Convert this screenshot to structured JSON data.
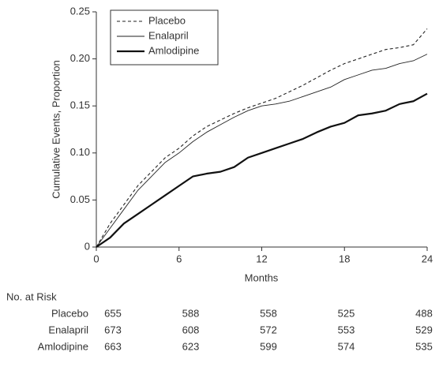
{
  "chart_data": {
    "type": "line",
    "x_label": "Months",
    "y_label": "Cumulative Events, Proportion",
    "x": [
      0,
      1,
      2,
      3,
      4,
      5,
      6,
      7,
      8,
      9,
      10,
      11,
      12,
      13,
      14,
      15,
      16,
      17,
      18,
      19,
      20,
      21,
      22,
      23,
      24
    ],
    "series": [
      {
        "name": "Placebo",
        "color": "#222222",
        "dash": true,
        "width": 1.1,
        "values": [
          0,
          0.025,
          0.045,
          0.065,
          0.08,
          0.095,
          0.105,
          0.118,
          0.128,
          0.135,
          0.142,
          0.148,
          0.153,
          0.158,
          0.165,
          0.172,
          0.18,
          0.188,
          0.195,
          0.2,
          0.205,
          0.21,
          0.212,
          0.215,
          0.232
        ]
      },
      {
        "name": "Enalapril",
        "color": "#222222",
        "dash": false,
        "width": 0.9,
        "values": [
          0,
          0.02,
          0.04,
          0.06,
          0.075,
          0.09,
          0.1,
          0.112,
          0.122,
          0.13,
          0.138,
          0.145,
          0.15,
          0.152,
          0.155,
          0.16,
          0.165,
          0.17,
          0.178,
          0.183,
          0.188,
          0.19,
          0.195,
          0.198,
          0.205
        ]
      },
      {
        "name": "Amlodipine",
        "color": "#111111",
        "dash": false,
        "width": 2.2,
        "values": [
          0,
          0.01,
          0.025,
          0.035,
          0.045,
          0.055,
          0.065,
          0.075,
          0.078,
          0.08,
          0.085,
          0.095,
          0.1,
          0.105,
          0.11,
          0.115,
          0.122,
          0.128,
          0.132,
          0.14,
          0.142,
          0.145,
          0.152,
          0.155,
          0.163
        ]
      }
    ],
    "xlim": [
      0,
      24
    ],
    "xticks": [
      0,
      6,
      12,
      18,
      24
    ],
    "ylim": [
      0,
      0.25
    ],
    "yticks": [
      0,
      0.05,
      {
        "value": 0.1,
        "label": "0.10"
      },
      0.15,
      {
        "value": 0.2,
        "label": "0.20"
      },
      0.25
    ],
    "grid": false,
    "legend": "upper left",
    "risk_table": {
      "title": "No. at Risk",
      "rows": [
        {
          "name": "Placebo",
          "values": [
            655,
            588,
            558,
            525,
            488
          ]
        },
        {
          "name": "Enalapril",
          "values": [
            673,
            608,
            572,
            553,
            529
          ]
        },
        {
          "name": "Amlodipine",
          "values": [
            663,
            623,
            599,
            574,
            535
          ]
        }
      ]
    }
  }
}
